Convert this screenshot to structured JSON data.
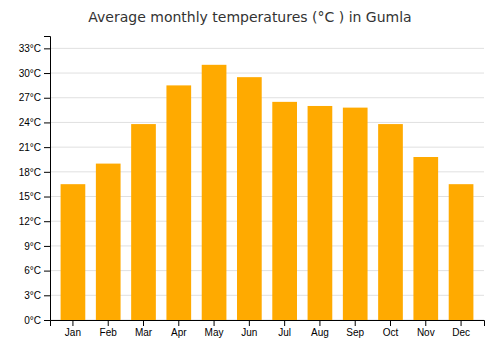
{
  "chart_data": {
    "type": "bar",
    "title": "Average monthly temperatures (°C ) in Gumla",
    "categories": [
      "Jan",
      "Feb",
      "Mar",
      "Apr",
      "May",
      "Jun",
      "Jul",
      "Aug",
      "Sep",
      "Oct",
      "Nov",
      "Dec"
    ],
    "values": [
      16.5,
      19.0,
      23.8,
      28.5,
      31.0,
      29.5,
      26.5,
      26.0,
      25.8,
      23.8,
      19.8,
      16.5
    ],
    "color": "#FFAA00",
    "ylim": [
      0,
      34.5
    ],
    "yticks": [
      {
        "value": 0,
        "label": "0°C"
      },
      {
        "value": 3,
        "label": "3°C"
      },
      {
        "value": 6,
        "label": "6°C"
      },
      {
        "value": 9,
        "label": "9°C"
      },
      {
        "value": 12,
        "label": "12°C"
      },
      {
        "value": 15,
        "label": "15°C"
      },
      {
        "value": 18,
        "label": "18°C"
      },
      {
        "value": 21,
        "label": "21°C"
      },
      {
        "value": 24,
        "label": "24°C"
      },
      {
        "value": 27,
        "label": "27°C"
      },
      {
        "value": 30,
        "label": "30°C"
      },
      {
        "value": 33,
        "label": "33°C"
      }
    ],
    "grid": true
  }
}
